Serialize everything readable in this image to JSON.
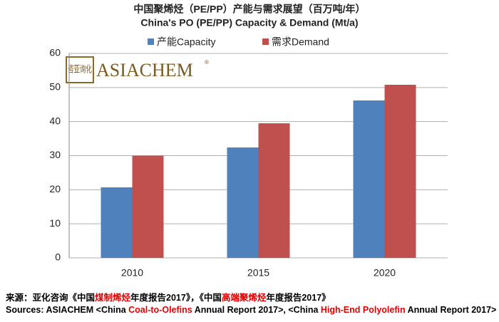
{
  "chart_data": {
    "type": "bar",
    "title": "中国聚烯烃（PE/PP）产能与需求展望（百万吨/年）",
    "subtitle": "China's PO (PE/PP) Capacity & Demand (Mt/a)",
    "categories": [
      "2010",
      "2015",
      "2020"
    ],
    "series": [
      {
        "name": "产能Capacity",
        "color": "#4f81bd",
        "values": [
          20.7,
          32.4,
          46.2
        ]
      },
      {
        "name": "需求Demand",
        "color": "#c0504d",
        "values": [
          30,
          39.5,
          50.8
        ]
      }
    ],
    "ylim": [
      0,
      60
    ],
    "yticks": [
      0,
      10,
      20,
      30,
      40,
      50,
      60
    ],
    "grid": true,
    "legend": "top"
  },
  "logo": {
    "cn": "咨亚询化",
    "en": "ASIACHEM",
    "mark": "®"
  },
  "sources": {
    "highlight_color": "#e00000",
    "cn": [
      {
        "text": "来源：亚化咨询《中国"
      },
      {
        "text": "煤制烯烃",
        "highlight": true
      },
      {
        "text": "年度报告2017》，《中国"
      },
      {
        "text": "高端聚烯烃",
        "highlight": true
      },
      {
        "text": "年度报告2017》"
      }
    ],
    "en": [
      {
        "text": "Sources: ASIACHEM <China "
      },
      {
        "text": "Coal-to-Olefins",
        "highlight": true
      },
      {
        "text": " Annual Report 2017>, <China "
      },
      {
        "text": "High-End Polyolefin",
        "highlight": true
      },
      {
        "text": " Annual Report 2017>"
      }
    ]
  }
}
